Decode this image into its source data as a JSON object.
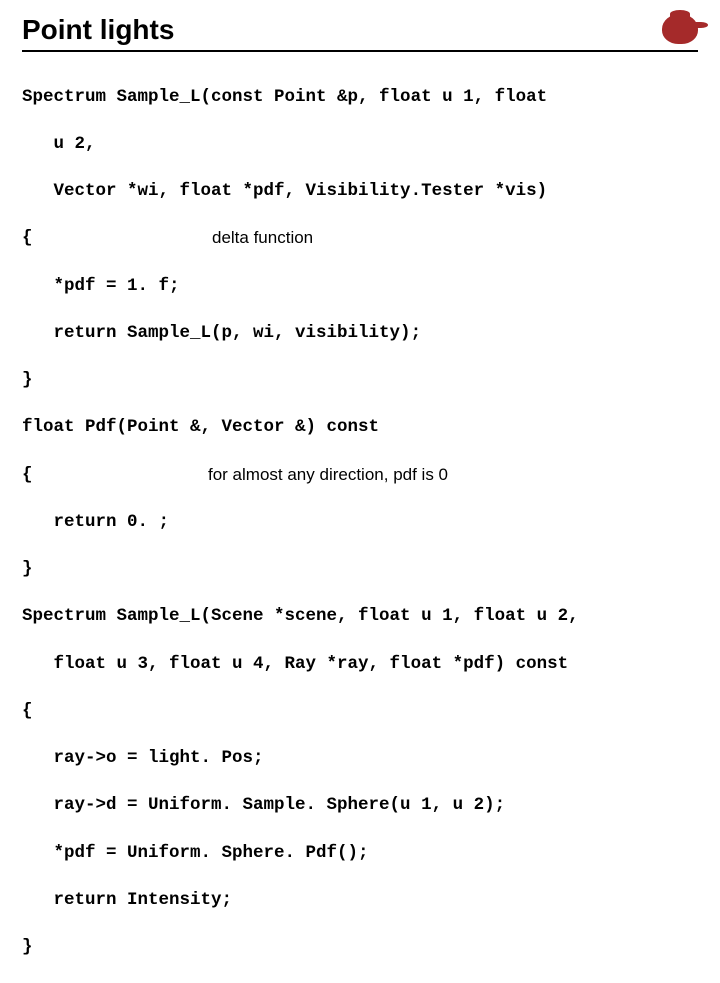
{
  "title": "Point lights",
  "annotations": {
    "delta": "delta function",
    "pdf0": "for almost any direction, pdf is 0"
  },
  "code": {
    "l1": "Spectrum Sample_L(const Point &p, float u 1, float",
    "l2": "   u 2,",
    "l3": "   Vector *wi, float *pdf, Visibility.Tester *vis)",
    "l4": "{",
    "l5": "   *pdf = 1. f;",
    "l6": "   return Sample_L(p, wi, visibility);",
    "l7": "}",
    "l8": "float Pdf(Point &, Vector &) const",
    "l9": "{",
    "l10": "   return 0. ;",
    "l11": "}",
    "l12": "Spectrum Sample_L(Scene *scene, float u 1, float u 2,",
    "l13": "   float u 3, float u 4, Ray *ray, float *pdf) const",
    "l14": "{",
    "l15": "   ray->o = light. Pos;",
    "l16": "   ray->d = Uniform. Sample. Sphere(u 1, u 2);",
    "l17": "   *pdf = Uniform. Sphere. Pdf();",
    "l18": "   return Intensity;",
    "l19": "}"
  }
}
